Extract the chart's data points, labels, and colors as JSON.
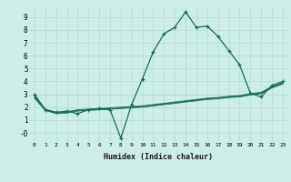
{
  "xlabel": "Humidex (Indice chaleur)",
  "background_color": "#cceee8",
  "grid_color": "#b8d8d2",
  "line_color": "#1a6b5a",
  "xlim": [
    -0.5,
    23.5
  ],
  "ylim": [
    -0.7,
    9.9
  ],
  "xticks": [
    0,
    1,
    2,
    3,
    4,
    5,
    6,
    7,
    8,
    9,
    10,
    11,
    12,
    13,
    14,
    15,
    16,
    17,
    18,
    19,
    20,
    21,
    22,
    23
  ],
  "yticks": [
    0,
    1,
    2,
    3,
    4,
    5,
    6,
    7,
    8,
    9
  ],
  "ytick_labels": [
    "-0",
    "1",
    "2",
    "3",
    "4",
    "5",
    "6",
    "7",
    "8",
    "9"
  ],
  "line1_x": [
    0,
    1,
    2,
    3,
    4,
    5,
    6,
    7,
    8,
    9,
    10,
    11,
    12,
    13,
    14,
    15,
    16,
    17,
    18,
    19,
    20,
    21,
    22,
    23
  ],
  "line1_y": [
    3.0,
    1.8,
    1.6,
    1.7,
    1.5,
    1.8,
    1.9,
    1.8,
    -0.4,
    2.2,
    4.2,
    6.3,
    7.7,
    8.2,
    9.4,
    8.2,
    8.3,
    7.5,
    6.4,
    5.3,
    3.1,
    2.8,
    3.7,
    4.0
  ],
  "line2_x": [
    0,
    1,
    2,
    3,
    4,
    5,
    6,
    7,
    8,
    9,
    10,
    11,
    12,
    13,
    14,
    15,
    16,
    17,
    18,
    19,
    20,
    21,
    22,
    23
  ],
  "line2_y": [
    2.9,
    1.85,
    1.6,
    1.65,
    1.8,
    1.85,
    1.9,
    1.95,
    2.0,
    2.05,
    2.1,
    2.2,
    2.3,
    2.4,
    2.5,
    2.6,
    2.7,
    2.75,
    2.85,
    2.9,
    3.05,
    3.15,
    3.6,
    3.9
  ],
  "line3_x": [
    0,
    1,
    2,
    3,
    4,
    5,
    6,
    7,
    8,
    9,
    10,
    11,
    12,
    13,
    14,
    15,
    16,
    17,
    18,
    19,
    20,
    21,
    22,
    23
  ],
  "line3_y": [
    2.8,
    1.8,
    1.55,
    1.6,
    1.75,
    1.8,
    1.85,
    1.9,
    1.95,
    2.0,
    2.05,
    2.15,
    2.25,
    2.35,
    2.45,
    2.55,
    2.65,
    2.7,
    2.8,
    2.85,
    3.0,
    3.1,
    3.55,
    3.85
  ],
  "line4_x": [
    0,
    1,
    2,
    3,
    4,
    5,
    6,
    7,
    8,
    9,
    10,
    11,
    12,
    13,
    14,
    15,
    16,
    17,
    18,
    19,
    20,
    21,
    22,
    23
  ],
  "line4_y": [
    2.7,
    1.75,
    1.5,
    1.55,
    1.7,
    1.75,
    1.8,
    1.85,
    1.9,
    1.95,
    2.0,
    2.1,
    2.2,
    2.3,
    2.4,
    2.5,
    2.6,
    2.65,
    2.75,
    2.8,
    2.95,
    3.05,
    3.5,
    3.8
  ]
}
